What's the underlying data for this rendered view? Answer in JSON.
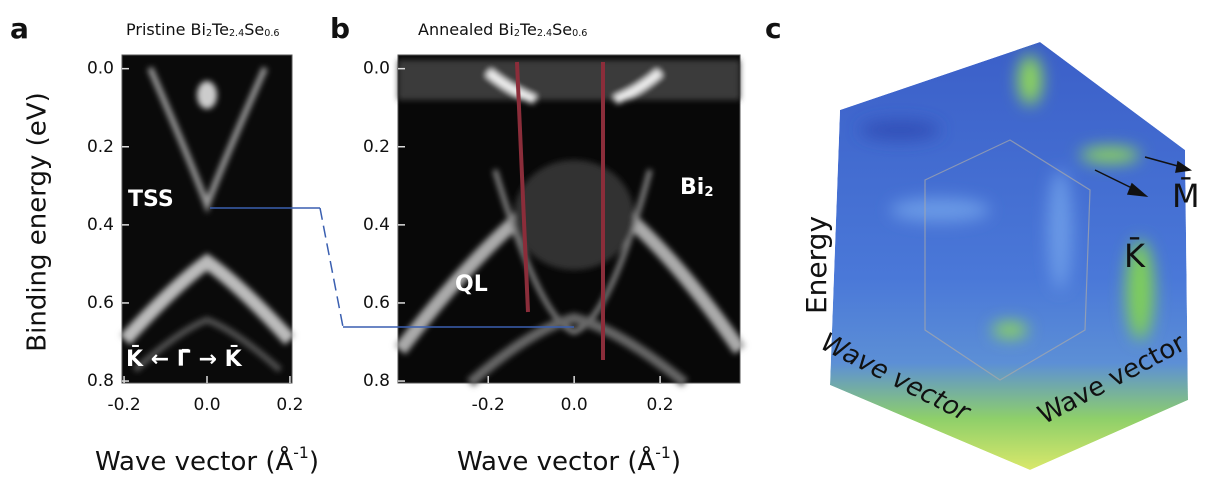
{
  "panels": [
    {
      "letter": "a",
      "title_parts": [
        "Pristine Bi",
        "2",
        "Te",
        "2.4",
        "Se",
        "0.6"
      ],
      "ylabel": "Binding energy (eV)",
      "xlabel_parts": [
        "Wave vector (Å",
        "-1",
        ")"
      ],
      "ylim": [
        -0.035,
        0.805
      ],
      "yticks": [
        {
          "value": 0,
          "label": "0.0"
        },
        0.2,
        0.4,
        0.6,
        0.8
      ],
      "xlim": [
        -0.205,
        0.205
      ],
      "xticks": [
        -0.2,
        {
          "value": 0,
          "label": "0.0"
        },
        0.2
      ],
      "annotations": [
        "TSS",
        "K̄ ← Γ̄ → K̄"
      ]
    },
    {
      "letter": "b",
      "title_parts": [
        "Annealed Bi",
        "2",
        "Te",
        "2.4",
        "Se",
        "0.6"
      ],
      "xlabel_parts": [
        "Wave vector (Å",
        "-1",
        ")"
      ],
      "ylim": [
        -0.035,
        0.805
      ],
      "yticks": [
        {
          "value": 0,
          "label": "0.0"
        },
        0.2,
        0.4,
        0.6,
        0.8
      ],
      "xlim": [
        -0.41,
        0.386
      ],
      "xticks": [
        -0.2,
        {
          "value": 0,
          "label": "0.0"
        },
        0.2
      ],
      "annotations": [
        "QL"
      ],
      "bi_parts": [
        "Bi",
        "2"
      ]
    },
    {
      "letter": "c",
      "labels": [
        "Energy",
        "Wave vector",
        "Wave vector",
        "K̄",
        "M̄"
      ]
    }
  ]
}
